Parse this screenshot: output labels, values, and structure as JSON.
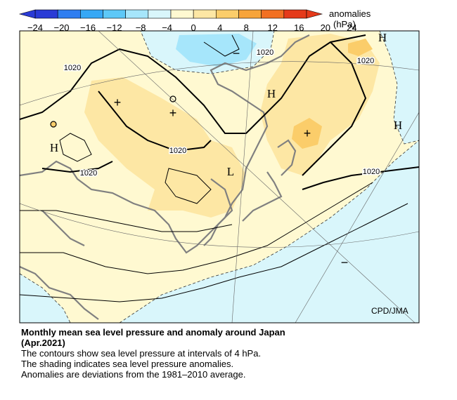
{
  "legend": {
    "title_line1": "anomalies",
    "title_line2": "(hPa)",
    "ticks": [
      "−24",
      "−20",
      "−16",
      "−12",
      "−8",
      "−4",
      "0",
      "4",
      "8",
      "12",
      "16",
      "20",
      "24"
    ],
    "colors": [
      "#2a3bd6",
      "#2f7ef0",
      "#36a8f5",
      "#5dc8f7",
      "#a6e6fb",
      "#d9f6fb",
      "#fff9d1",
      "#fde7a4",
      "#fbcd6a",
      "#f7a43a",
      "#f27022",
      "#e53a1a"
    ]
  },
  "map": {
    "pressure_labels": [
      "1020",
      "1020",
      "1020",
      "1020",
      "1020",
      "1020"
    ],
    "highs": [
      "H",
      "H",
      "H",
      "H"
    ],
    "lows": [
      "L"
    ],
    "plus_marks": [
      "+",
      "+",
      "+"
    ],
    "minus_marks": [
      "−",
      "−"
    ],
    "credit": "CPD/JMA"
  },
  "caption": {
    "title": "Monthly mean sea level pressure and anomaly around Japan",
    "subtitle": "(Apr.2021)",
    "line1": "The contours show sea level pressure at intervals of 4 hPa.",
    "line2": "The shading indicates sea level pressure anomalies.",
    "line3": "Anomalies are deviations from the 1981–2010 average."
  }
}
